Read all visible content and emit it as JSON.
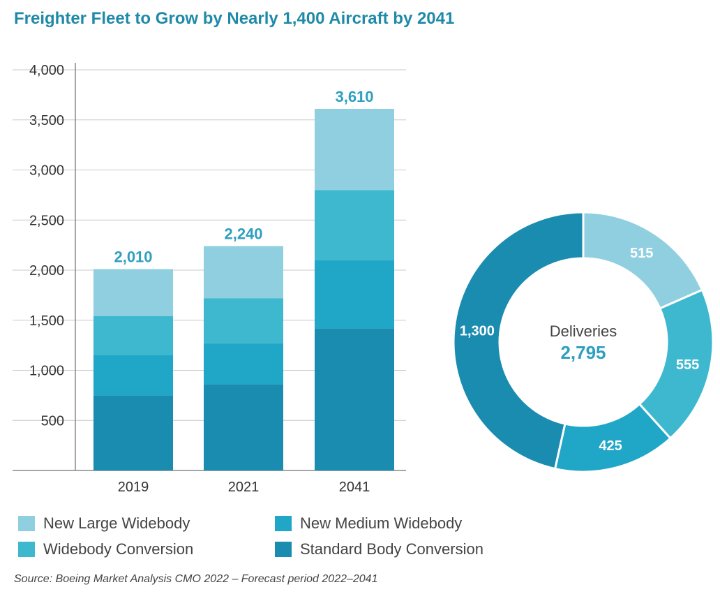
{
  "title": "Freighter Fleet to Grow by Nearly 1,400 Aircraft by 2041",
  "source": "Source: Boeing Market Analysis CMO 2022 – Forecast period 2022–2041",
  "colors": {
    "new_large_widebody": "#8fcfe0",
    "widebody_conversion": "#3db8cf",
    "new_medium_widebody": "#20a6c6",
    "standard_body_conversion": "#1a8cb0",
    "title": "#1f8aa8",
    "accent": "#2e9fc0"
  },
  "legend": [
    {
      "label": "New Large Widebody",
      "color": "#8fcfe0"
    },
    {
      "label": "New Medium Widebody",
      "color": "#20a6c6"
    },
    {
      "label": "Widebody Conversion",
      "color": "#3db8cf"
    },
    {
      "label": "Standard Body Conversion",
      "color": "#1a8cb0"
    }
  ],
  "chart_data": [
    {
      "type": "bar",
      "stacked": true,
      "categories": [
        "2019",
        "2021",
        "2041"
      ],
      "totals": [
        "2,010",
        "2,240",
        "3,610"
      ],
      "ylim": [
        0,
        4000
      ],
      "yticks": [
        "500",
        "1,000",
        "1,500",
        "2,000",
        "2,500",
        "3,000",
        "3,500",
        "4,000"
      ],
      "grid": true,
      "series": [
        {
          "name": "Standard Body Conversion",
          "color": "#1a8cb0",
          "values": [
            750,
            860,
            1420
          ]
        },
        {
          "name": "New Medium Widebody",
          "color": "#20a6c6",
          "values": [
            400,
            410,
            680
          ]
        },
        {
          "name": "Widebody Conversion",
          "color": "#3db8cf",
          "values": [
            390,
            450,
            700
          ]
        },
        {
          "name": "New Large Widebody",
          "color": "#8fcfe0",
          "values": [
            470,
            520,
            810
          ]
        }
      ]
    },
    {
      "type": "pie",
      "donut": true,
      "center_label": "Deliveries",
      "center_value": "2,795",
      "slices": [
        {
          "name": "New Large Widebody",
          "value": 515,
          "label": "515",
          "color": "#8fcfe0"
        },
        {
          "name": "Widebody Conversion",
          "value": 555,
          "label": "555",
          "color": "#3db8cf"
        },
        {
          "name": "New Medium Widebody",
          "value": 425,
          "label": "425",
          "color": "#20a6c6"
        },
        {
          "name": "Standard Body Conversion",
          "value": 1300,
          "label": "1,300",
          "color": "#1a8cb0"
        }
      ]
    }
  ]
}
